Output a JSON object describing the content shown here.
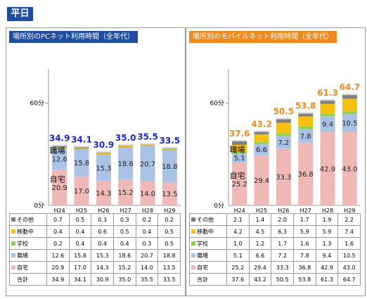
{
  "badge": "平日",
  "panels": [
    {
      "title": "場所別のPCネット利用時間（全年代）",
      "total_color": "#1a26d6",
      "y_tick_top": "60分",
      "y_tick_zero": "0分",
      "annotation_shokuba": "職場",
      "annotation_jitaku": "自宅",
      "table_total_label": "合計"
    },
    {
      "title": "場所別のモバイルネット利用時間（全年代）",
      "total_color": "#ee8a1e",
      "y_tick_top": "60分",
      "y_tick_zero": "0分",
      "annotation_shokuba": "職場",
      "annotation_jitaku": "自宅",
      "table_total_label": "合計"
    }
  ],
  "chart_data": [
    {
      "type": "bar",
      "stacked": true,
      "title": "場所別のPCネット利用時間（全年代）",
      "categories": [
        "H24",
        "H25",
        "H26",
        "H27",
        "H28",
        "H29"
      ],
      "ylim": [
        0,
        80
      ],
      "series": [
        {
          "name": "その他",
          "color": "#808080",
          "values": [
            0.7,
            0.5,
            0.3,
            0.3,
            0.2,
            0.2
          ]
        },
        {
          "name": "移動中",
          "color": "#f9c00f",
          "values": [
            0.4,
            0.4,
            0.6,
            0.5,
            0.4,
            0.5
          ]
        },
        {
          "name": "学校",
          "color": "#92d050",
          "values": [
            0.2,
            0.4,
            0.4,
            0.4,
            0.3,
            0.5
          ]
        },
        {
          "name": "職場",
          "color": "#a9c2e5",
          "values": [
            12.6,
            15.8,
            15.3,
            18.6,
            20.7,
            18.8
          ]
        },
        {
          "name": "自宅",
          "color": "#f0b9b5",
          "values": [
            20.9,
            17.0,
            14.3,
            15.2,
            14.0,
            13.5
          ]
        }
      ],
      "totals": [
        "34.9",
        "34.1",
        "30.9",
        "35.0",
        "35.5",
        "33.5"
      ],
      "bar_labels": {
        "職場": [
          "12.6",
          "15.8",
          "15.3",
          "18.6",
          "20.7",
          "18.8"
        ],
        "自宅": [
          "20.9",
          "17.0",
          "14.3",
          "15.2",
          "14.0",
          "13.5"
        ]
      },
      "table": [
        [
          "0.7",
          "0.5",
          "0.3",
          "0.3",
          "0.2",
          "0.2"
        ],
        [
          "0.4",
          "0.4",
          "0.6",
          "0.5",
          "0.4",
          "0.5"
        ],
        [
          "0.2",
          "0.4",
          "0.4",
          "0.4",
          "0.3",
          "0.5"
        ],
        [
          "12.6",
          "15.8",
          "15.3",
          "18.6",
          "20.7",
          "18.8"
        ],
        [
          "20.9",
          "17.0",
          "14.3",
          "15.2",
          "14.0",
          "13.5"
        ],
        [
          "34.9",
          "34.1",
          "30.9",
          "35.0",
          "35.5",
          "33.5"
        ]
      ]
    },
    {
      "type": "bar",
      "stacked": true,
      "title": "場所別のモバイルネット利用時間（全年代）",
      "categories": [
        "H24",
        "H25",
        "H26",
        "H27",
        "H28",
        "H29"
      ],
      "ylim": [
        0,
        80
      ],
      "series": [
        {
          "name": "その他",
          "color": "#808080",
          "values": [
            2.1,
            1.4,
            2.0,
            1.7,
            1.9,
            2.2
          ]
        },
        {
          "name": "移動中",
          "color": "#f9c00f",
          "values": [
            4.2,
            4.5,
            6.3,
            5.9,
            5.9,
            7.4
          ]
        },
        {
          "name": "学校",
          "color": "#92d050",
          "values": [
            1.0,
            1.2,
            1.7,
            1.6,
            1.3,
            1.6
          ]
        },
        {
          "name": "職場",
          "color": "#a9c2e5",
          "values": [
            5.1,
            6.6,
            7.2,
            7.8,
            9.4,
            10.5
          ]
        },
        {
          "name": "自宅",
          "color": "#f0b9b5",
          "values": [
            25.2,
            29.4,
            33.3,
            36.8,
            42.9,
            43.0
          ]
        }
      ],
      "totals": [
        "37.6",
        "43.2",
        "50.5",
        "53.8",
        "61.3",
        "64.7"
      ],
      "bar_labels": {
        "職場": [
          "5.1",
          "6.6",
          "7.2",
          "7.8",
          "9.4",
          "10.5"
        ],
        "自宅": [
          "25.2",
          "29.4",
          "33.3",
          "36.8",
          "42.9",
          "43.0"
        ]
      },
      "table": [
        [
          "2.1",
          "1.4",
          "2.0",
          "1.7",
          "1.9",
          "2.2"
        ],
        [
          "4.2",
          "4.5",
          "6.3",
          "5.9",
          "5.9",
          "7.4"
        ],
        [
          "1.0",
          "1.2",
          "1.7",
          "1.6",
          "1.3",
          "1.6"
        ],
        [
          "5.1",
          "6.6",
          "7.2",
          "7.8",
          "9.4",
          "10.5"
        ],
        [
          "25.2",
          "29.4",
          "33.3",
          "36.8",
          "42.9",
          "43.0"
        ],
        [
          "37.6",
          "43.2",
          "50.5",
          "53.8",
          "61.3",
          "64.7"
        ]
      ]
    }
  ]
}
